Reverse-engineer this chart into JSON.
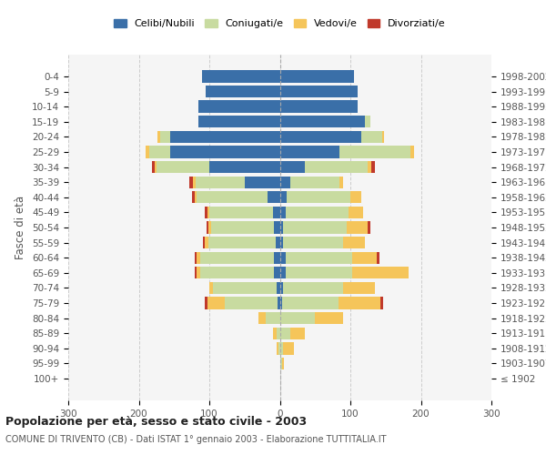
{
  "age_groups": [
    "100+",
    "95-99",
    "90-94",
    "85-89",
    "80-84",
    "75-79",
    "70-74",
    "65-69",
    "60-64",
    "55-59",
    "50-54",
    "45-49",
    "40-44",
    "35-39",
    "30-34",
    "25-29",
    "20-24",
    "15-19",
    "10-14",
    "5-9",
    "0-4"
  ],
  "birth_years": [
    "≤ 1902",
    "1903-1907",
    "1908-1912",
    "1913-1917",
    "1918-1922",
    "1923-1927",
    "1928-1932",
    "1933-1937",
    "1938-1942",
    "1943-1947",
    "1948-1952",
    "1953-1957",
    "1958-1962",
    "1963-1967",
    "1968-1972",
    "1973-1977",
    "1978-1982",
    "1983-1987",
    "1988-1992",
    "1993-1997",
    "1998-2002"
  ],
  "males": {
    "celibe": [
      0,
      0,
      0,
      0,
      0,
      3,
      5,
      8,
      8,
      6,
      8,
      10,
      18,
      50,
      100,
      155,
      155,
      115,
      115,
      105,
      110
    ],
    "coniugato": [
      0,
      0,
      2,
      5,
      20,
      75,
      90,
      105,
      105,
      95,
      90,
      90,
      100,
      70,
      75,
      30,
      15,
      0,
      0,
      0,
      0
    ],
    "vedovo": [
      0,
      0,
      2,
      5,
      10,
      25,
      5,
      5,
      5,
      5,
      3,
      3,
      3,
      3,
      3,
      5,
      3,
      0,
      0,
      0,
      0
    ],
    "divorziato": [
      0,
      0,
      0,
      0,
      0,
      3,
      0,
      3,
      3,
      3,
      3,
      3,
      3,
      5,
      3,
      0,
      0,
      0,
      0,
      0,
      0
    ]
  },
  "females": {
    "nubile": [
      0,
      0,
      0,
      0,
      0,
      3,
      5,
      8,
      8,
      5,
      5,
      8,
      10,
      15,
      35,
      85,
      115,
      120,
      110,
      110,
      105
    ],
    "coniugata": [
      0,
      3,
      5,
      15,
      50,
      80,
      85,
      95,
      95,
      85,
      90,
      90,
      90,
      70,
      90,
      100,
      30,
      8,
      0,
      0,
      0
    ],
    "vedova": [
      0,
      3,
      15,
      20,
      40,
      60,
      45,
      80,
      35,
      30,
      30,
      20,
      15,
      5,
      5,
      5,
      3,
      0,
      0,
      0,
      0
    ],
    "divorziata": [
      0,
      0,
      0,
      0,
      0,
      3,
      0,
      0,
      3,
      0,
      3,
      0,
      0,
      0,
      5,
      0,
      0,
      0,
      0,
      0,
      0
    ]
  },
  "colors": {
    "celibe": "#3a6fa8",
    "coniugato": "#c8dba0",
    "vedovo": "#f5c55a",
    "divorziato": "#c0392b"
  },
  "legend_labels": [
    "Celibi/Nubili",
    "Coniugati/e",
    "Vedovi/e",
    "Divorziati/e"
  ],
  "title": "Popolazione per età, sesso e stato civile - 2003",
  "subtitle": "COMUNE DI TRIVENTO (CB) - Dati ISTAT 1° gennaio 2003 - Elaborazione TUTTITALIA.IT",
  "ylabel_left": "Fasce di età",
  "xlim": 300,
  "bg_color": "#f5f5f5",
  "bar_height": 0.8
}
